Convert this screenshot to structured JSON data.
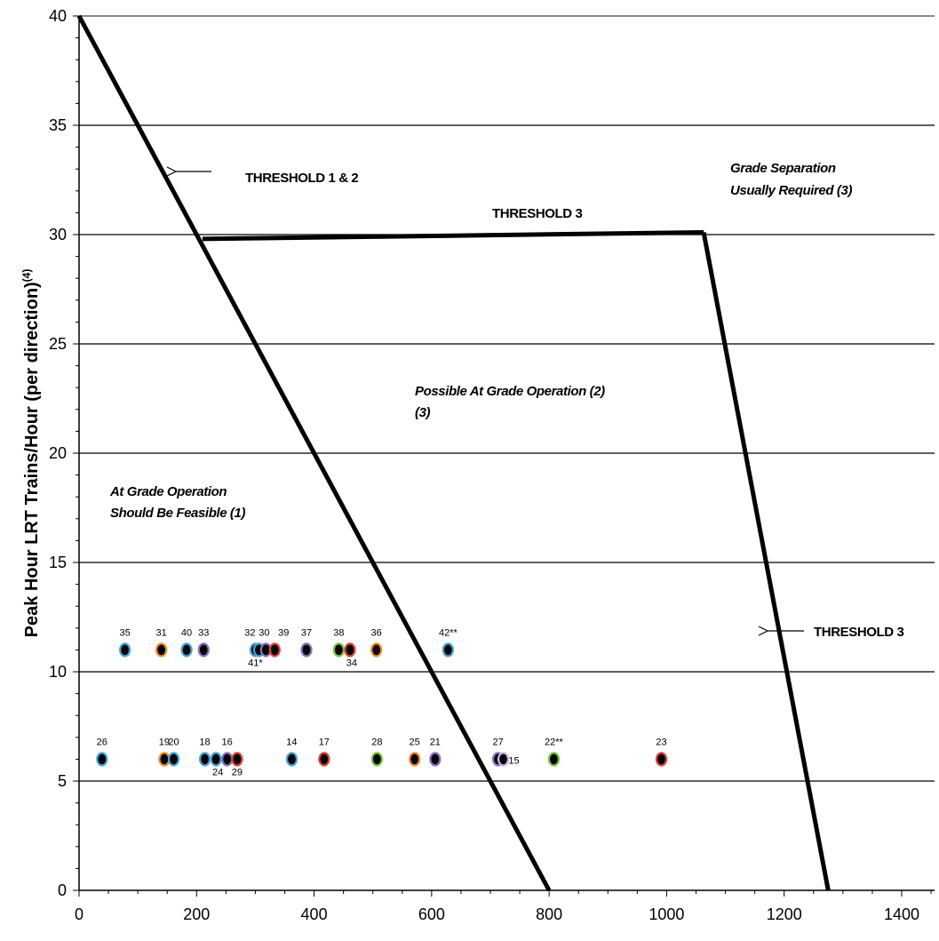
{
  "chart_data": {
    "type": "scatter",
    "title": "",
    "xlabel": "",
    "ylabel": "Peak Hour LRT Trains/Hour  (per direction)",
    "ylabel_superscript": "(4)",
    "xlim": [
      0,
      1500
    ],
    "ylim": [
      0,
      40
    ],
    "x_ticks": [
      "0",
      "200",
      "400",
      "600",
      "800",
      "1000",
      "1200",
      "1400"
    ],
    "y_ticks": [
      "0",
      "5",
      "10",
      "15",
      "20",
      "25",
      "30",
      "35",
      "40"
    ],
    "grid": "horizontal",
    "threshold_lines": [
      {
        "name": "THRESHOLD 1 & 2",
        "points": [
          [
            0,
            40
          ],
          [
            800,
            0
          ]
        ]
      },
      {
        "name": "THRESHOLD 3",
        "points": [
          [
            210,
            29.8
          ],
          [
            1063,
            30.1
          ]
        ]
      },
      {
        "name": "THRESHOLD 3",
        "points": [
          [
            1063,
            30.1
          ],
          [
            1275,
            0
          ]
        ]
      }
    ],
    "annotations": {
      "threshold_12": "THRESHOLD 1 & 2",
      "threshold_3_top": "THRESHOLD 3",
      "threshold_3_right": "THRESHOLD 3",
      "grade_sep_1": "Grade Separation",
      "grade_sep_2": "Usually Required (3)",
      "possible_1": "Possible At Grade Operation (2)",
      "possible_2": "(3)",
      "feasible_1": "At Grade Operation",
      "feasible_2": "Should Be Feasible (1)"
    },
    "points": [
      {
        "label": "35",
        "x": 78,
        "y": 11,
        "color": "#4aa3d6"
      },
      {
        "label": "31",
        "x": 140,
        "y": 11,
        "color": "#f08a2c"
      },
      {
        "label": "40",
        "x": 183,
        "y": 11,
        "color": "#4aa3d6"
      },
      {
        "label": "33",
        "x": 212,
        "y": 11,
        "color": "#8a6fc4"
      },
      {
        "label": "32",
        "x": 300,
        "y": 11,
        "color": "#4aa3d6"
      },
      {
        "label": "41*",
        "x": 306,
        "y": 11,
        "color": "#4aa3d6"
      },
      {
        "label": "30",
        "x": 318,
        "y": 11,
        "color": "#8a6fc4"
      },
      {
        "label": "39",
        "x": 333,
        "y": 11,
        "color": "#e0403a"
      },
      {
        "label": "37",
        "x": 387,
        "y": 11,
        "color": "#8a6fc4"
      },
      {
        "label": "38",
        "x": 442,
        "y": 11,
        "color": "#7ac043"
      },
      {
        "label": "34",
        "x": 461,
        "y": 11,
        "color": "#e0403a"
      },
      {
        "label": "36",
        "x": 506,
        "y": 11,
        "color": "#f08a2c"
      },
      {
        "label": "42**",
        "x": 628,
        "y": 11,
        "color": "#4aa3d6"
      },
      {
        "label": "26",
        "x": 39,
        "y": 6,
        "color": "#4aa3d6"
      },
      {
        "label": "19",
        "x": 145,
        "y": 6,
        "color": "#f08a2c"
      },
      {
        "label": "20",
        "x": 161,
        "y": 6,
        "color": "#4aa3d6"
      },
      {
        "label": "18",
        "x": 214,
        "y": 6,
        "color": "#4aa3d6"
      },
      {
        "label": "24",
        "x": 233,
        "y": 6,
        "color": "#4aa3d6"
      },
      {
        "label": "16",
        "x": 252,
        "y": 6,
        "color": "#8a6fc4"
      },
      {
        "label": "29",
        "x": 269,
        "y": 6,
        "color": "#e0403a"
      },
      {
        "label": "14",
        "x": 362,
        "y": 6,
        "color": "#4aa3d6"
      },
      {
        "label": "17",
        "x": 417,
        "y": 6,
        "color": "#e0403a"
      },
      {
        "label": "28",
        "x": 507,
        "y": 6,
        "color": "#7ac043"
      },
      {
        "label": "25",
        "x": 571,
        "y": 6,
        "color": "#f08a2c"
      },
      {
        "label": "21",
        "x": 606,
        "y": 6,
        "color": "#8a6fc4"
      },
      {
        "label": "27",
        "x": 713,
        "y": 6,
        "color": "#8a6fc4"
      },
      {
        "label": "15",
        "x": 722,
        "y": 6,
        "color": "#c7b6e6"
      },
      {
        "label": "22**",
        "x": 808,
        "y": 6,
        "color": "#7ac043"
      },
      {
        "label": "23",
        "x": 991,
        "y": 6,
        "color": "#e0403a"
      }
    ]
  }
}
